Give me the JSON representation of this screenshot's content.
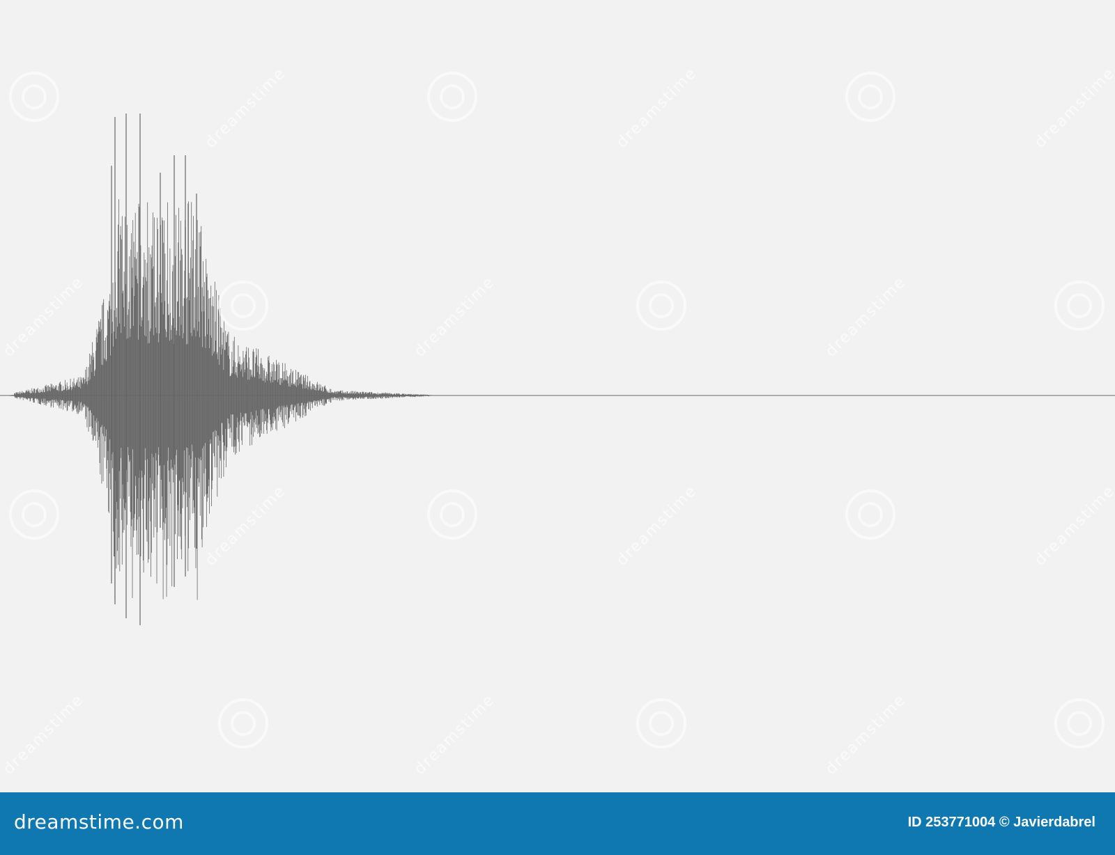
{
  "image": {
    "subject": "audio waveform",
    "background_color": "#f2f2f2",
    "waveform_color": "#666666",
    "watermark_text": "dreamstime"
  },
  "footer": {
    "background_color": "#0f78b0",
    "logo": "dreamstime.com",
    "credit": "ID 253771004 © Javierdabrel"
  }
}
